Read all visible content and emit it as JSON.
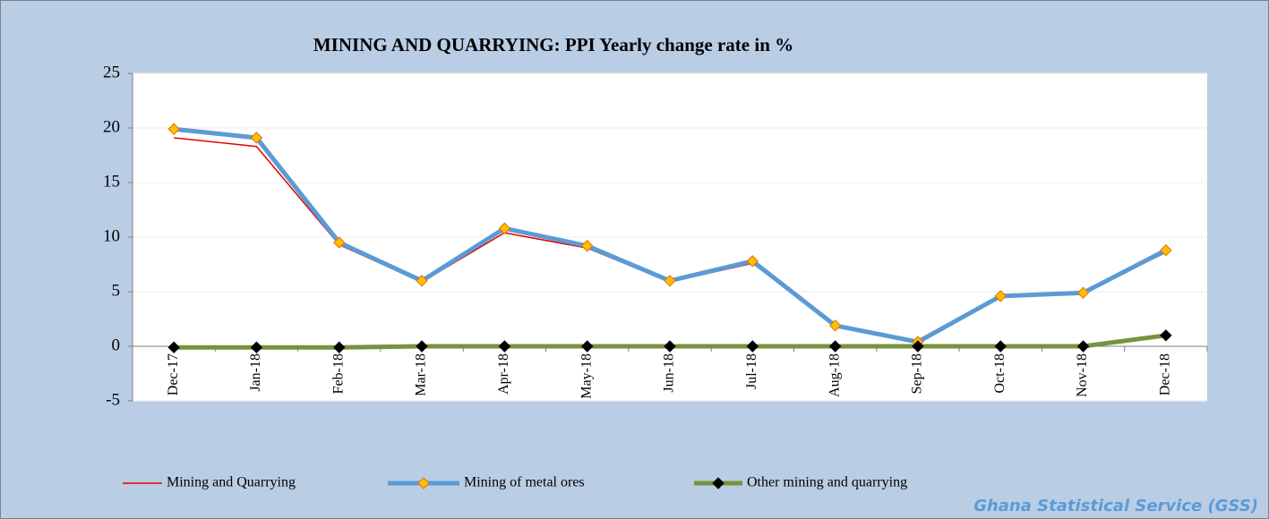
{
  "chart_data": {
    "type": "line",
    "title": "MINING AND QUARRYING:  PPI  Yearly change rate  in %",
    "source": "Ghana Statistical Service (GSS)",
    "categories": [
      "Dec-17",
      "Jan-18",
      "Feb-18",
      "Mar-18",
      "Apr-18",
      "May-18",
      "Jun-18",
      "Jul-18",
      "Aug-18",
      "Sep-18",
      "Oct-18",
      "Nov-18",
      "Dec-18"
    ],
    "series": [
      {
        "name": "Mining and Quarrying",
        "color": "#e00000",
        "values": [
          19.1,
          18.3,
          9.3,
          5.9,
          10.4,
          9.0,
          5.9,
          7.6,
          1.9,
          0.3,
          4.6,
          4.9,
          8.6
        ]
      },
      {
        "name": "Mining of metal ores",
        "color": "#5b9bd5",
        "marker": "diamond",
        "marker_color": "#ffc000",
        "values": [
          19.9,
          19.1,
          9.5,
          6.0,
          10.8,
          9.2,
          6.0,
          7.8,
          1.9,
          0.4,
          4.6,
          4.9,
          8.8
        ]
      },
      {
        "name": "Other mining and quarrying",
        "color": "#77933c",
        "marker": "diamond",
        "marker_color": "#000000",
        "values": [
          -0.1,
          -0.1,
          -0.1,
          0,
          0,
          0,
          0,
          0,
          0,
          0,
          0,
          0,
          1.0
        ]
      }
    ],
    "ylim": [
      -5,
      25
    ],
    "yticks": [
      -5,
      0,
      5,
      10,
      15,
      20,
      25
    ],
    "grid": true,
    "legend": "bottom"
  }
}
